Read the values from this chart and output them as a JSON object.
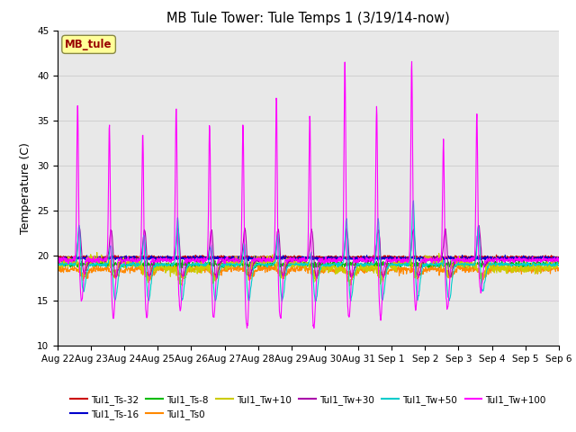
{
  "title": "MB Tule Tower: Tule Temps 1 (3/19/14-now)",
  "ylabel": "Temperature (C)",
  "ylim": [
    10,
    45
  ],
  "yticks": [
    10,
    15,
    20,
    25,
    30,
    35,
    40,
    45
  ],
  "xlabel_dates": [
    "Aug 22",
    "Aug 23",
    "Aug 24",
    "Aug 25",
    "Aug 26",
    "Aug 27",
    "Aug 28",
    "Aug 29",
    "Aug 30",
    "Aug 31",
    "Sep 1",
    "Sep 2",
    "Sep 3",
    "Sep 4",
    "Sep 5",
    "Sep 6"
  ],
  "annotation_text": "MB_tule",
  "annotation_color": "#990000",
  "annotation_bg": "#ffff99",
  "lines": [
    {
      "label": "Tul1_Ts-32",
      "color": "#cc0000"
    },
    {
      "label": "Tul1_Ts-16",
      "color": "#0000cc"
    },
    {
      "label": "Tul1_Ts-8",
      "color": "#00bb00"
    },
    {
      "label": "Tul1_Ts0",
      "color": "#ff8800"
    },
    {
      "label": "Tul1_Tw+10",
      "color": "#cccc00"
    },
    {
      "label": "Tul1_Tw+30",
      "color": "#aa00aa"
    },
    {
      "label": "Tul1_Tw+50",
      "color": "#00cccc"
    },
    {
      "label": "Tul1_Tw+100",
      "color": "#ff00ff"
    }
  ],
  "grid_color": "#d0d0d0",
  "background_color": "#e8e8e8",
  "spike_up_heights_mag": [
    37,
    35,
    34,
    37,
    35,
    35,
    38,
    36,
    42,
    37,
    42,
    33,
    36
  ],
  "spike_down_depths_mag": [
    15,
    13,
    13,
    14,
    13,
    12,
    13,
    12,
    13,
    13,
    14,
    14,
    16
  ],
  "spike_up_heights_cya": [
    24,
    22,
    23,
    25,
    22,
    22,
    23,
    21,
    25,
    25,
    27,
    20,
    24
  ],
  "spike_down_depths_cya": [
    16,
    15,
    15,
    15,
    15,
    15,
    15,
    15,
    15,
    15,
    15,
    15,
    16
  ],
  "n_days": 15,
  "base_temp": 19.5
}
